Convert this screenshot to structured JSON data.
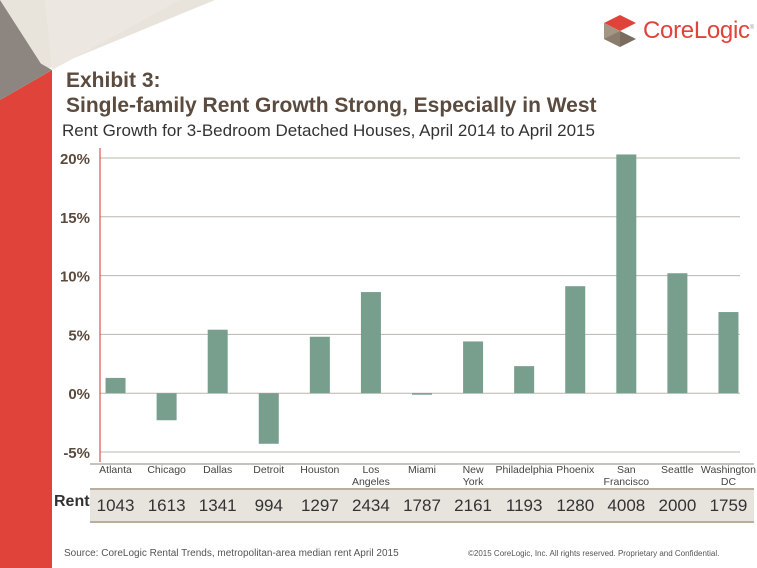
{
  "logo": {
    "text": "CoreLogic",
    "mark": "®"
  },
  "header": {
    "exhibit": "Exhibit 3:",
    "title": "Single-family Rent Growth Strong, Especially in West",
    "subtitle": "Rent Growth for 3-Bedroom Detached Houses, April 2014 to April 2015"
  },
  "colors": {
    "bar": "#789e8d",
    "accent": "#e0433a",
    "title": "#5b4a3e",
    "grid": "#bdb5ae"
  },
  "chart_data": {
    "type": "bar",
    "title": "Rent Growth for 3-Bedroom Detached Houses, April 2014 to April 2015",
    "xlabel": "",
    "ylabel": "",
    "ylim": [
      -5,
      20
    ],
    "yticks": [
      20,
      15,
      10,
      5,
      0,
      -5
    ],
    "ytick_labels": [
      "20%",
      "15%",
      "10%",
      "5%",
      "0%",
      "-5%"
    ],
    "grid": true,
    "categories": [
      [
        "Atlanta"
      ],
      [
        "Chicago"
      ],
      [
        "Dallas"
      ],
      [
        "Detroit"
      ],
      [
        "Houston"
      ],
      [
        "Los",
        "Angeles"
      ],
      [
        "Miami"
      ],
      [
        "New",
        "York"
      ],
      [
        "Philadelphia"
      ],
      [
        "Phoenix"
      ],
      [
        "San",
        "Francisco"
      ],
      [
        "Seattle"
      ],
      [
        "Washington",
        "DC"
      ]
    ],
    "values": [
      1.3,
      -2.3,
      5.4,
      -4.3,
      4.8,
      8.6,
      -0.1,
      4.4,
      2.3,
      9.1,
      20.3,
      10.2,
      6.9
    ],
    "units": "%"
  },
  "rent": {
    "label": "Rent",
    "values": [
      "1043",
      "1613",
      "1341",
      "994",
      "1297",
      "2434",
      "1787",
      "2161",
      "1193",
      "1280",
      "4008",
      "2000",
      "1759"
    ]
  },
  "footer": {
    "source": "Source:  CoreLogic  Rental Trends,  metropolitan-area  median  rent  April 2015",
    "copyright": "©2015 CoreLogic, Inc. All rights reserved. Proprietary and Confidential."
  }
}
